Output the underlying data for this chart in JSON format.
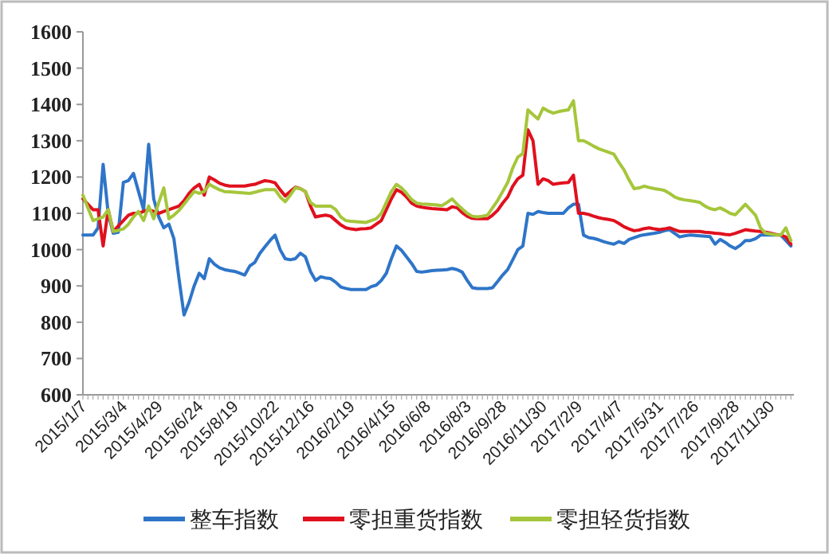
{
  "chart_data": {
    "type": "line",
    "ylim": [
      600,
      1600
    ],
    "yticks": [
      600,
      700,
      800,
      900,
      1000,
      1100,
      1200,
      1300,
      1400,
      1500,
      1600
    ],
    "categories": [
      "2015/1/7",
      null,
      null,
      null,
      null,
      null,
      null,
      null,
      "2015/3/4",
      null,
      null,
      null,
      null,
      null,
      null,
      "2015/4/29",
      null,
      null,
      null,
      null,
      null,
      null,
      null,
      "2015/6/24",
      null,
      null,
      null,
      null,
      null,
      null,
      "2015/8/19",
      null,
      null,
      null,
      null,
      null,
      null,
      null,
      "2015/10/22",
      null,
      null,
      null,
      null,
      null,
      null,
      "2015/12/16",
      null,
      null,
      null,
      null,
      null,
      null,
      null,
      "2016/2/19",
      null,
      null,
      null,
      null,
      null,
      null,
      null,
      "2016/4/15",
      null,
      null,
      null,
      null,
      null,
      null,
      "2016/6/8",
      null,
      null,
      null,
      null,
      null,
      null,
      null,
      "2016/8/3",
      null,
      null,
      null,
      null,
      null,
      null,
      "2016/9/28",
      null,
      null,
      null,
      null,
      null,
      null,
      null,
      "2016/11/30",
      null,
      null,
      null,
      null,
      null,
      null,
      "2017/2/9",
      null,
      null,
      null,
      null,
      null,
      null,
      null,
      "2017/4/7",
      null,
      null,
      null,
      null,
      null,
      null,
      null,
      "2017/5/31",
      null,
      null,
      null,
      null,
      null,
      null,
      "2017/7/26",
      null,
      null,
      null,
      null,
      null,
      null,
      null,
      "2017/9/28",
      null,
      null,
      null,
      null,
      null,
      null,
      "2017/11/30",
      null,
      null,
      null,
      null
    ],
    "grid": false,
    "legend": "bottom",
    "marker": "none",
    "line_style": "solid",
    "series": [
      {
        "name": "整车指数",
        "color": "#2e75c8",
        "values": [
          1040,
          1040,
          1040,
          1060,
          1235,
          1100,
          1045,
          1048,
          1185,
          1190,
          1210,
          1160,
          1110,
          1290,
          1140,
          1090,
          1060,
          1070,
          1030,
          920,
          820,
          855,
          900,
          935,
          920,
          975,
          960,
          950,
          945,
          942,
          940,
          935,
          930,
          955,
          965,
          990,
          1008,
          1025,
          1040,
          1000,
          975,
          972,
          975,
          990,
          980,
          940,
          915,
          925,
          922,
          920,
          910,
          897,
          893,
          890,
          890,
          890,
          890,
          898,
          902,
          915,
          935,
          975,
          1010,
          998,
          980,
          962,
          940,
          938,
          940,
          942,
          943,
          944,
          945,
          948,
          945,
          938,
          915,
          895,
          893,
          893,
          893,
          895,
          912,
          930,
          945,
          972,
          1000,
          1010,
          1100,
          1097,
          1105,
          1102,
          1100,
          1100,
          1100,
          1100,
          1115,
          1125,
          1125,
          1040,
          1033,
          1031,
          1027,
          1022,
          1018,
          1015,
          1022,
          1017,
          1028,
          1033,
          1038,
          1041,
          1043,
          1045,
          1048,
          1052,
          1055,
          1045,
          1035,
          1038,
          1040,
          1039,
          1038,
          1037,
          1036,
          1015,
          1028,
          1020,
          1010,
          1003,
          1012,
          1025,
          1025,
          1030,
          1040,
          1040,
          1040,
          1040,
          1040,
          1025,
          1010
        ]
      },
      {
        "name": "零担重货指数",
        "color": "#e0101e",
        "values": [
          1140,
          1125,
          1110,
          1110,
          1010,
          1110,
          1050,
          1065,
          1080,
          1095,
          1100,
          1100,
          1105,
          1110,
          1105,
          1100,
          1105,
          1110,
          1115,
          1120,
          1135,
          1155,
          1170,
          1180,
          1150,
          1200,
          1192,
          1183,
          1178,
          1175,
          1175,
          1175,
          1175,
          1178,
          1180,
          1185,
          1190,
          1188,
          1184,
          1165,
          1148,
          1160,
          1172,
          1168,
          1160,
          1120,
          1090,
          1093,
          1095,
          1092,
          1080,
          1068,
          1060,
          1057,
          1055,
          1057,
          1058,
          1060,
          1070,
          1080,
          1110,
          1140,
          1165,
          1158,
          1145,
          1128,
          1120,
          1117,
          1115,
          1113,
          1112,
          1111,
          1110,
          1118,
          1115,
          1102,
          1092,
          1086,
          1085,
          1085,
          1085,
          1095,
          1108,
          1128,
          1145,
          1175,
          1195,
          1205,
          1330,
          1300,
          1180,
          1195,
          1190,
          1180,
          1182,
          1184,
          1185,
          1205,
          1100,
          1100,
          1097,
          1092,
          1088,
          1085,
          1083,
          1080,
          1072,
          1063,
          1057,
          1052,
          1054,
          1058,
          1060,
          1057,
          1055,
          1057,
          1060,
          1055,
          1050,
          1050,
          1050,
          1050,
          1050,
          1048,
          1047,
          1045,
          1044,
          1042,
          1041,
          1045,
          1050,
          1055,
          1053,
          1051,
          1050,
          1048,
          1045,
          1042,
          1040,
          1035,
          1015
        ]
      },
      {
        "name": "零担轻货指数",
        "color": "#a5c63b",
        "values": [
          1150,
          1115,
          1080,
          1085,
          1090,
          1110,
          1050,
          1053,
          1057,
          1070,
          1090,
          1105,
          1080,
          1120,
          1085,
          1130,
          1170,
          1085,
          1095,
          1108,
          1125,
          1143,
          1160,
          1155,
          1160,
          1180,
          1172,
          1165,
          1160,
          1159,
          1158,
          1157,
          1156,
          1155,
          1158,
          1162,
          1165,
          1165,
          1165,
          1145,
          1132,
          1150,
          1170,
          1168,
          1160,
          1130,
          1120,
          1120,
          1120,
          1120,
          1110,
          1090,
          1080,
          1078,
          1077,
          1076,
          1075,
          1080,
          1085,
          1100,
          1130,
          1160,
          1180,
          1170,
          1155,
          1138,
          1128,
          1126,
          1125,
          1124,
          1123,
          1121,
          1130,
          1140,
          1125,
          1112,
          1100,
          1092,
          1090,
          1092,
          1095,
          1115,
          1135,
          1160,
          1185,
          1225,
          1255,
          1265,
          1385,
          1372,
          1360,
          1390,
          1382,
          1376,
          1380,
          1383,
          1385,
          1410,
          1300,
          1300,
          1293,
          1285,
          1278,
          1273,
          1268,
          1263,
          1240,
          1220,
          1192,
          1168,
          1170,
          1175,
          1171,
          1168,
          1166,
          1163,
          1155,
          1145,
          1140,
          1137,
          1135,
          1133,
          1130,
          1120,
          1113,
          1110,
          1115,
          1108,
          1100,
          1096,
          1110,
          1125,
          1110,
          1095,
          1060,
          1045,
          1043,
          1041,
          1040,
          1060,
          1025
        ]
      }
    ]
  }
}
